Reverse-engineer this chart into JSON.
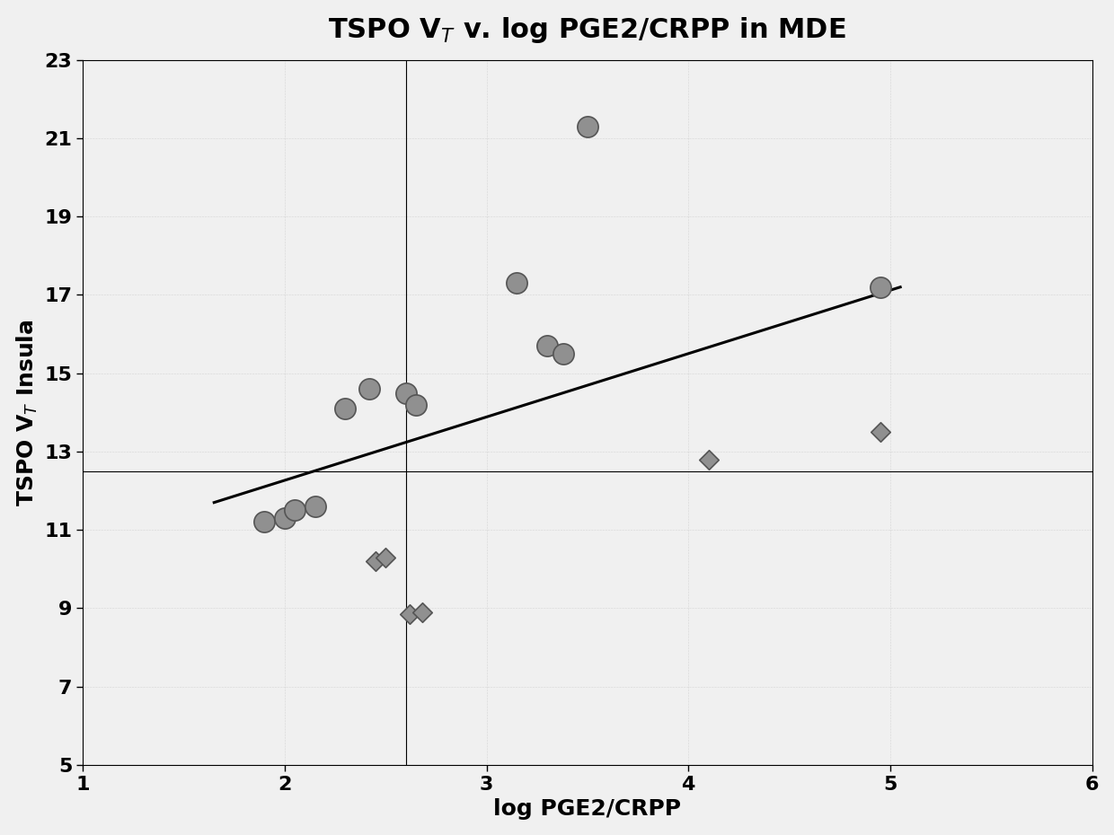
{
  "title": "TSPO V$_T$ v. log PGE2/CRPP in MDE",
  "xlabel": "log PGE2/CRPP",
  "ylabel": "TSPO V$_T$ Insula",
  "xlim": [
    1,
    6
  ],
  "ylim": [
    5,
    23
  ],
  "xticks": [
    1,
    2,
    3,
    4,
    5,
    6
  ],
  "yticks": [
    5,
    7,
    9,
    11,
    13,
    15,
    17,
    19,
    21,
    23
  ],
  "circle_points": [
    [
      1.9,
      11.2
    ],
    [
      2.0,
      11.3
    ],
    [
      2.05,
      11.5
    ],
    [
      2.15,
      11.6
    ],
    [
      2.3,
      14.1
    ],
    [
      2.42,
      14.6
    ],
    [
      2.6,
      14.5
    ],
    [
      2.65,
      14.2
    ],
    [
      3.15,
      17.3
    ],
    [
      3.3,
      15.7
    ],
    [
      3.38,
      15.5
    ],
    [
      3.5,
      21.3
    ],
    [
      4.95,
      17.2
    ]
  ],
  "diamond_points": [
    [
      2.45,
      10.2
    ],
    [
      2.5,
      10.3
    ],
    [
      2.62,
      8.85
    ],
    [
      2.68,
      8.9
    ],
    [
      4.1,
      12.8
    ],
    [
      4.95,
      13.5
    ]
  ],
  "regression_line": {
    "x1": 1.65,
    "y1": 11.7,
    "x2": 5.05,
    "y2": 17.2
  },
  "hline_y": 12.5,
  "vline_x": 2.6,
  "circle_color": "#909090",
  "diamond_color": "#909090",
  "line_color": "#000000",
  "ref_line_color": "#000000",
  "background_color": "#f0f0f0",
  "plot_bg_color": "#f0f0f0",
  "title_fontsize": 22,
  "label_fontsize": 18,
  "tick_fontsize": 16
}
